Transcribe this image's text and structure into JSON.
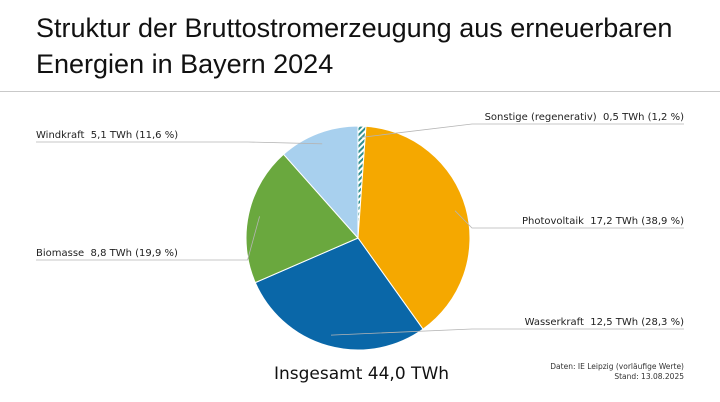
{
  "title": "Struktur der Bruttostromerzeugung aus erneuerbaren Energien in Bayern 2024",
  "total_label": "Insgesamt 44,0 TWh",
  "source": {
    "line1": "Daten: IE Leipzig (vorläufige Werte)",
    "line2": "Stand: 13.08.2025"
  },
  "chart_data": {
    "type": "pie",
    "unit": "TWh",
    "total": 44.0,
    "slices": [
      {
        "name": "Sonstige (regenerativ)",
        "value": 0.5,
        "percent": 1.2,
        "label": "Sonstige (regenerativ)  0,5 TWh (1,2 %)",
        "color": "#2f8f8f",
        "pattern": "hatched"
      },
      {
        "name": "Photovoltaik",
        "value": 17.2,
        "percent": 38.9,
        "label": "Photovoltaik  17,2 TWh (38,9 %)",
        "color": "#f5a800"
      },
      {
        "name": "Wasserkraft",
        "value": 12.5,
        "percent": 28.3,
        "label": "Wasserkraft  12,5 TWh (28,3 %)",
        "color": "#0a67a8"
      },
      {
        "name": "Biomasse",
        "value": 8.8,
        "percent": 19.9,
        "label": "Biomasse  8,8 TWh (19,9 %)",
        "color": "#6aa83e"
      },
      {
        "name": "Windkraft",
        "value": 5.1,
        "percent": 11.6,
        "label": "Windkraft  5,1 TWh (11,6 %)",
        "color": "#a8d0ee"
      }
    ]
  }
}
